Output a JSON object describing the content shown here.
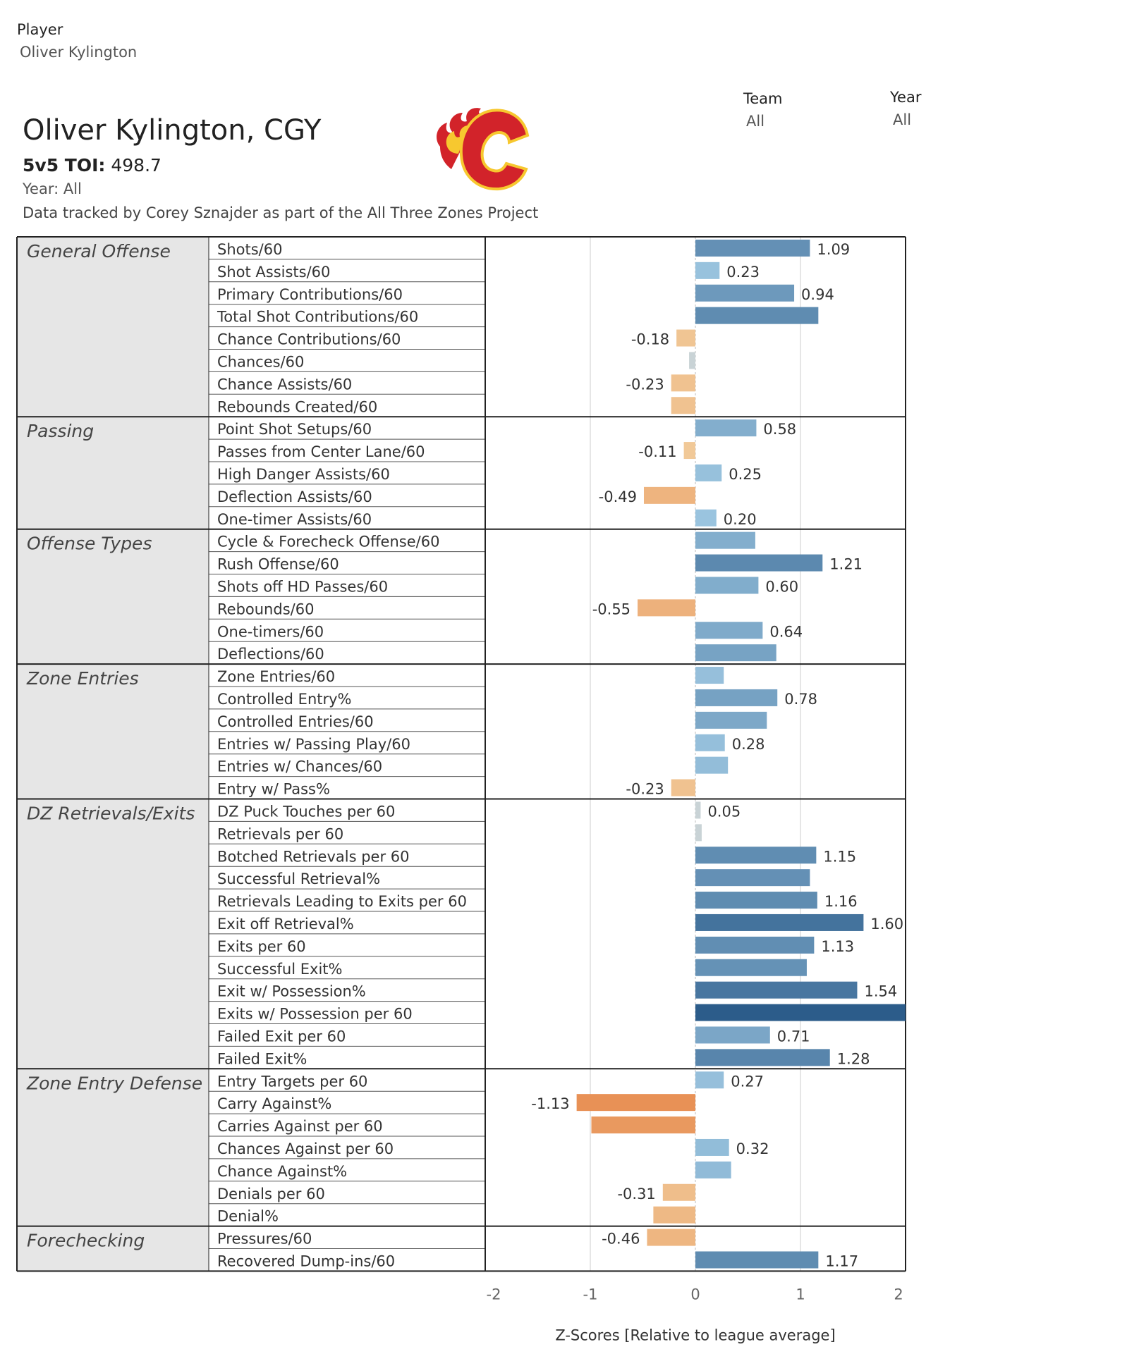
{
  "filters": {
    "player_label": "Player",
    "player_value": "Oliver Kylington",
    "team_label": "Team",
    "team_value": "All",
    "year_label": "Year",
    "year_value": "All"
  },
  "header": {
    "title": "Oliver Kylington, CGY",
    "toi_label": "5v5 TOI:",
    "toi_value": "498.7",
    "year_line": "Year: All",
    "credit": "Data tracked by Corey Sznajder as part of the All Three Zones Project"
  },
  "colors": {
    "positive_light": "#a6cfe8",
    "positive_dark": "#2c5c8a",
    "negative_light": "#f2cf9f",
    "negative_dark": "#e0621e",
    "neutral": "#c9d3d6",
    "grid": "#cccccc",
    "category_bg": "#e6e6e6",
    "logo_red": "#d2232a",
    "logo_yellow": "#f7c82f"
  },
  "chart_data": {
    "type": "bar",
    "orientation": "horizontal",
    "xlabel": "Z-Scores [Relative to league average]",
    "xlim": [
      -2,
      2
    ],
    "ticks": [
      "-2",
      "-1",
      "0",
      "1",
      "2"
    ],
    "tick_values": [
      -2,
      -1,
      0,
      1,
      2
    ],
    "groups": [
      {
        "name": "General Offense",
        "metrics": [
          {
            "label": "Shots/60",
            "value": 1.09,
            "display": "1.09"
          },
          {
            "label": "Shot Assists/60",
            "value": 0.23,
            "display": "0.23"
          },
          {
            "label": "Primary Contributions/60",
            "value": 0.94,
            "display": "0.94"
          },
          {
            "label": "Total Shot Contributions/60",
            "value": 1.17,
            "display": ""
          },
          {
            "label": "Chance Contributions/60",
            "value": -0.18,
            "display": "-0.18"
          },
          {
            "label": "Chances/60",
            "value": -0.06,
            "display": ""
          },
          {
            "label": "Chance Assists/60",
            "value": -0.23,
            "display": "-0.23"
          },
          {
            "label": "Rebounds Created/60",
            "value": -0.23,
            "display": ""
          }
        ]
      },
      {
        "name": "Passing",
        "metrics": [
          {
            "label": "Point Shot Setups/60",
            "value": 0.58,
            "display": "0.58"
          },
          {
            "label": "Passes from Center Lane/60",
            "value": -0.11,
            "display": "-0.11"
          },
          {
            "label": "High Danger Assists/60",
            "value": 0.25,
            "display": "0.25"
          },
          {
            "label": "Deflection Assists/60",
            "value": -0.49,
            "display": "-0.49"
          },
          {
            "label": "One-timer Assists/60",
            "value": 0.2,
            "display": "0.20"
          }
        ]
      },
      {
        "name": "Offense Types",
        "metrics": [
          {
            "label": "Cycle & Forecheck Offense/60",
            "value": 0.57,
            "display": ""
          },
          {
            "label": "Rush Offense/60",
            "value": 1.21,
            "display": "1.21"
          },
          {
            "label": "Shots off HD Passes/60",
            "value": 0.6,
            "display": "0.60"
          },
          {
            "label": "Rebounds/60",
            "value": -0.55,
            "display": "-0.55"
          },
          {
            "label": "One-timers/60",
            "value": 0.64,
            "display": "0.64"
          },
          {
            "label": "Deflections/60",
            "value": 0.77,
            "display": ""
          }
        ]
      },
      {
        "name": "Zone Entries",
        "metrics": [
          {
            "label": "Zone Entries/60",
            "value": 0.27,
            "display": ""
          },
          {
            "label": "Controlled Entry%",
            "value": 0.78,
            "display": "0.78"
          },
          {
            "label": "Controlled Entries/60",
            "value": 0.68,
            "display": ""
          },
          {
            "label": "Entries w/ Passing Play/60",
            "value": 0.28,
            "display": "0.28"
          },
          {
            "label": "Entries w/ Chances/60",
            "value": 0.31,
            "display": ""
          },
          {
            "label": "Entry w/ Pass%",
            "value": -0.23,
            "display": "-0.23"
          }
        ]
      },
      {
        "name": "DZ Retrievals/Exits",
        "metrics": [
          {
            "label": "DZ Puck Touches per 60",
            "value": 0.05,
            "display": "0.05"
          },
          {
            "label": "Retrievals per 60",
            "value": 0.06,
            "display": ""
          },
          {
            "label": "Botched Retrievals per 60",
            "value": 1.15,
            "display": "1.15"
          },
          {
            "label": "Successful Retrieval%",
            "value": 1.09,
            "display": ""
          },
          {
            "label": "Retrievals Leading to Exits per 60",
            "value": 1.16,
            "display": "1.16"
          },
          {
            "label": "Exit off Retrieval%",
            "value": 1.6,
            "display": "1.60"
          },
          {
            "label": "Exits per 60",
            "value": 1.13,
            "display": "1.13"
          },
          {
            "label": "Successful Exit%",
            "value": 1.06,
            "display": ""
          },
          {
            "label": "Exit w/ Possession%",
            "value": 1.54,
            "display": "1.54"
          },
          {
            "label": "Exits w/ Possession per 60",
            "value": 2.0,
            "display": ""
          },
          {
            "label": "Failed Exit per 60",
            "value": 0.71,
            "display": "0.71"
          },
          {
            "label": "Failed Exit%",
            "value": 1.28,
            "display": "1.28"
          }
        ]
      },
      {
        "name": "Zone Entry Defense",
        "metrics": [
          {
            "label": "Entry Targets per 60",
            "value": 0.27,
            "display": "0.27"
          },
          {
            "label": "Carry Against%",
            "value": -1.13,
            "display": "-1.13"
          },
          {
            "label": "Carries Against per 60",
            "value": -0.99,
            "display": ""
          },
          {
            "label": "Chances Against per 60",
            "value": 0.32,
            "display": "0.32"
          },
          {
            "label": "Chance Against%",
            "value": 0.34,
            "display": ""
          },
          {
            "label": "Denials per 60",
            "value": -0.31,
            "display": "-0.31"
          },
          {
            "label": "Denial%",
            "value": -0.4,
            "display": ""
          }
        ]
      },
      {
        "name": "Forechecking",
        "metrics": [
          {
            "label": "Pressures/60",
            "value": -0.46,
            "display": "-0.46"
          },
          {
            "label": "Recovered Dump-ins/60",
            "value": 1.17,
            "display": "1.17"
          }
        ]
      }
    ]
  }
}
